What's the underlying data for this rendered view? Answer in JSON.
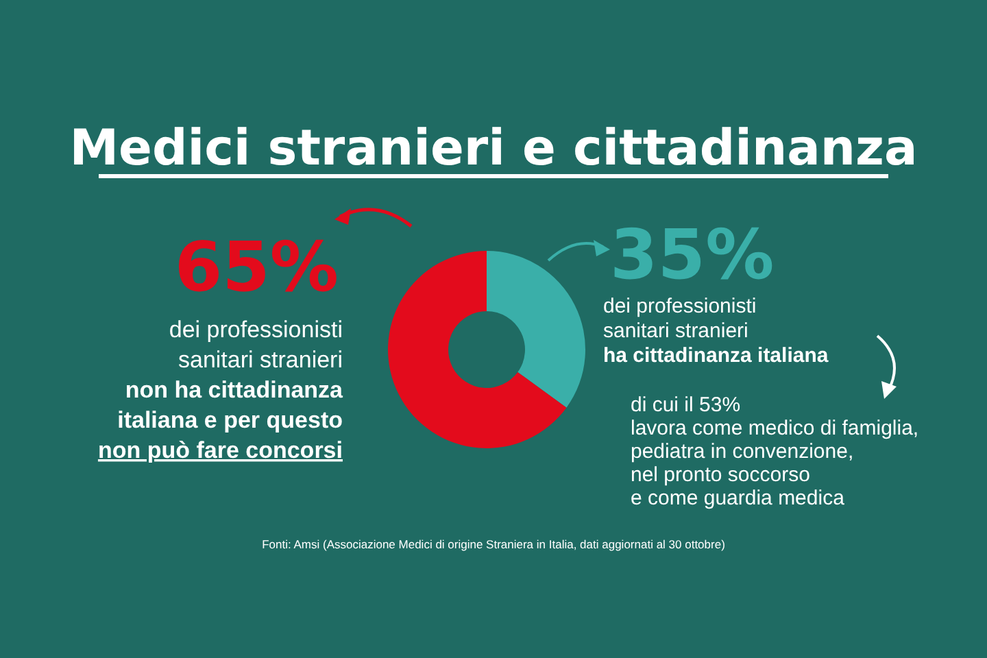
{
  "chart_data": {
    "type": "donut",
    "title": "Medici stranieri e cittadinanza",
    "categories": [
      "dei professionisti\nsanitari stranieri\nha cittadinanza italiana",
      "dei professionisti\nsanitari stranieri\nnon ha cittadinanza\nitaliana e per questo\nnon può fare concorsi"
    ],
    "values": [
      35,
      65
    ],
    "colors": [
      "#3aafa9",
      "#e30b1c"
    ],
    "value_labels": [
      "35%",
      "65%"
    ],
    "annotations": [
      "di cui il 53%\nlavora come medico di famiglia,\npediatra in convenzione,\nnel pronto soccorso\ne come guardia medica",
      "Fonti: Amsi (Associazione Medici di origine Straniera in Italia, dati aggiornati al 30 ottobre)"
    ]
  }
}
